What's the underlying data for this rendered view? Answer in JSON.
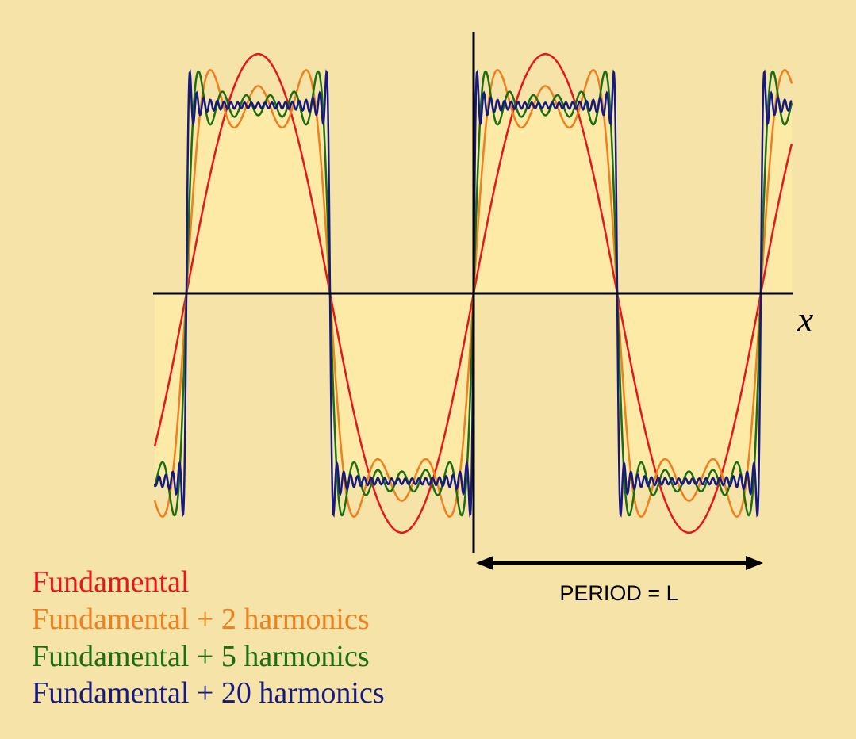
{
  "axis_label": "x",
  "period_label": "PERIOD = L",
  "legend": [
    {
      "text": "Fundamental",
      "color": "#e8161a"
    },
    {
      "text": "Fundamental + 2 harmonics",
      "color": "#f07f1d"
    },
    {
      "text": "Fundamental + 5 harmonics",
      "color": "#1c6e12"
    },
    {
      "text": "Fundamental + 20 harmonics",
      "color": "#161a80"
    }
  ]
}
